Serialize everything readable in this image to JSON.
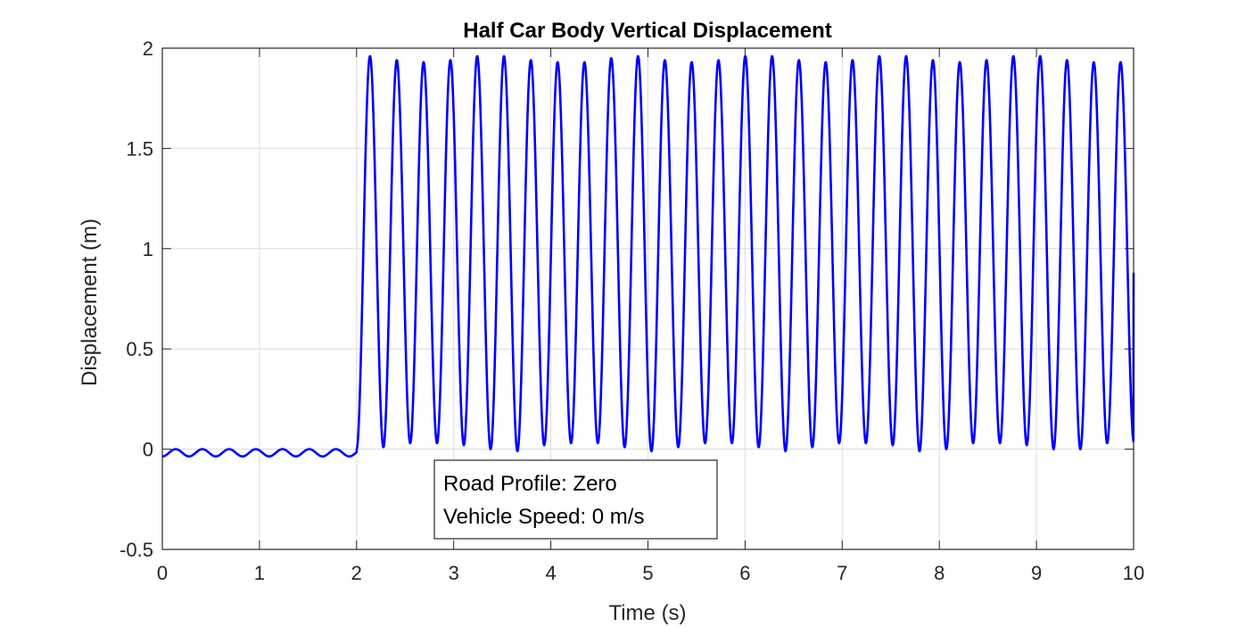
{
  "chart_data": {
    "type": "line",
    "title": "Half Car Body Vertical Displacement",
    "xlabel": "Time (s)",
    "ylabel": "Displacement (m)",
    "xlim": [
      0,
      10
    ],
    "ylim": [
      -0.5,
      2
    ],
    "xticks": [
      0,
      1,
      2,
      3,
      4,
      5,
      6,
      7,
      8,
      9,
      10
    ],
    "yticks": [
      -0.5,
      0,
      0.5,
      1,
      1.5,
      2
    ],
    "xtick_labels": [
      "0",
      "1",
      "2",
      "3",
      "4",
      "5",
      "6",
      "7",
      "8",
      "9",
      "10"
    ],
    "ytick_labels": [
      "-0.5",
      "0",
      "0.5",
      "1",
      "1.5",
      "2"
    ],
    "grid": true,
    "series": [
      {
        "color": "#0000ff",
        "segments": [
          {
            "x_range": [
              0,
              2
            ],
            "shape": "small sinusoidal ripple",
            "center": -0.018,
            "amplitude": 0.018,
            "period": 0.275
          },
          {
            "x_range": [
              2,
              10
            ],
            "shape": "large sinusoidal oscillation",
            "peak_values": [
              1.96,
              1.94,
              1.93,
              1.94,
              1.96,
              1.96,
              1.94,
              1.93,
              1.93,
              1.95,
              1.96,
              1.94,
              1.93,
              1.94,
              1.96,
              1.96,
              1.94,
              1.93,
              1.94,
              1.96,
              1.96,
              1.94,
              1.93,
              1.94,
              1.96,
              1.96,
              1.94,
              1.93,
              1.93
            ],
            "trough_values": [
              0.01,
              0.03,
              0.03,
              0.02,
              0.0,
              -0.01,
              0.02,
              0.03,
              0.03,
              0.01,
              -0.01,
              0.01,
              0.03,
              0.03,
              0.01,
              -0.01,
              0.01,
              0.03,
              0.03,
              0.02,
              -0.01,
              0.0,
              0.03,
              0.03,
              0.02,
              0.0,
              0.0,
              0.03,
              0.03
            ],
            "period": 0.276,
            "final_value": 0.88
          }
        ]
      }
    ],
    "annotation": {
      "lines": [
        "Road Profile: Zero",
        "Vehicle Speed: 0 m/s"
      ]
    }
  }
}
